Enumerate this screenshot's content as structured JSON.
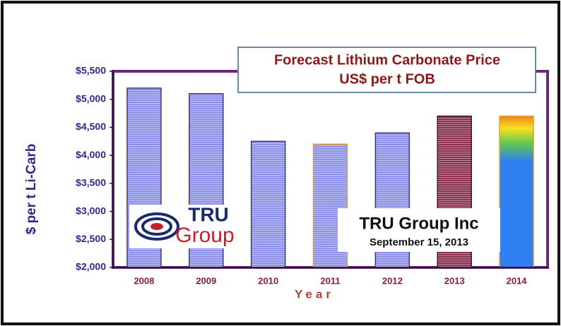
{
  "chart_data": {
    "type": "bar",
    "title": [
      "Forecast Lithium Carbonate Price",
      "US$ per t FOB"
    ],
    "ylabel": "$ per t Li-Carb",
    "xlabel": "Year",
    "categories": [
      "2008",
      "2009",
      "2010",
      "2011",
      "2012",
      "2013",
      "2014"
    ],
    "values": [
      5200,
      5100,
      4250,
      4200,
      4400,
      4700,
      4700
    ],
    "colors": [
      "#8b90e8",
      "#8b90e8",
      "#8b90e8",
      "#8b90e8",
      "#8b90e8",
      "#8a2f4e",
      "#2f7ff2"
    ],
    "edgecolors": [
      "#3a3a7a",
      "#3a3a7a",
      "#3a3a7a",
      "#e8a020",
      "#3a3a7a",
      "#3a1a2a",
      "#e8a020"
    ],
    "ylim": [
      2000,
      5500
    ],
    "yticks": [
      {
        "value": 2000,
        "label": "$2,000"
      },
      {
        "value": 2500,
        "label": "$2,500"
      },
      {
        "value": 3000,
        "label": "$3,000"
      },
      {
        "value": 3500,
        "label": "$3,500"
      },
      {
        "value": 4000,
        "label": "$4,000"
      },
      {
        "value": 4500,
        "label": "$4,500"
      },
      {
        "value": 5000,
        "label": "$5,000"
      },
      {
        "value": 5500,
        "label": "$5,500"
      }
    ],
    "logo": [
      "TRU",
      "Group"
    ],
    "annotation": [
      "TRU Group Inc",
      "September 15, 2013"
    ]
  }
}
